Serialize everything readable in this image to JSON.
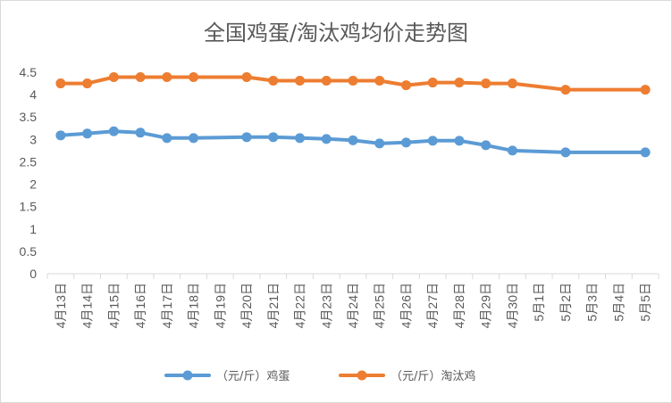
{
  "chart_data": {
    "type": "line",
    "title": "全国鸡蛋/淘汰鸡均价走势图",
    "categories": [
      "4月13日",
      "4月14日",
      "4月15日",
      "4月16日",
      "4月17日",
      "4月18日",
      "4月19日",
      "4月20日",
      "4月21日",
      "4月22日",
      "4月23日",
      "4月24日",
      "4月25日",
      "4月26日",
      "4月27日",
      "4月28日",
      "4月29日",
      "4月30日",
      "5月1日",
      "5月2日",
      "5月3日",
      "5月4日",
      "5月5日"
    ],
    "series": [
      {
        "name": "（元/斤）鸡蛋",
        "color": "#5b9bd5",
        "values": [
          3.09,
          3.13,
          3.18,
          3.15,
          3.03,
          3.03,
          null,
          3.05,
          3.05,
          3.03,
          3.01,
          2.98,
          2.91,
          2.93,
          2.97,
          2.97,
          2.87,
          2.75,
          null,
          2.71,
          null,
          null,
          2.71
        ]
      },
      {
        "name": "（元/斤）淘汰鸡",
        "color": "#ed7d31",
        "values": [
          4.25,
          4.25,
          4.39,
          4.39,
          4.39,
          4.39,
          null,
          4.39,
          4.31,
          4.31,
          4.31,
          4.31,
          4.31,
          4.21,
          4.27,
          4.27,
          4.25,
          4.25,
          null,
          4.11,
          null,
          null,
          4.11
        ]
      }
    ],
    "y_ticks": [
      "0",
      "0.5",
      "1",
      "1.5",
      "2",
      "2.5",
      "3",
      "3.5",
      "4",
      "4.5"
    ],
    "ylim": [
      0,
      4.5
    ],
    "grid": false,
    "legend_position": "bottom"
  }
}
